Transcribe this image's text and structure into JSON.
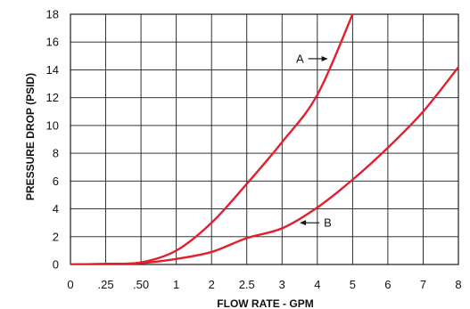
{
  "chart_data": {
    "type": "line",
    "title": "",
    "xlabel": "FLOW RATE - GPM",
    "ylabel": "PRESSURE DROP (PSID)",
    "x_ticks": [
      {
        "value": 0,
        "label": "0"
      },
      {
        "value": 0.25,
        "label": ".25"
      },
      {
        "value": 0.5,
        "label": ".50"
      },
      {
        "value": 1,
        "label": "1"
      },
      {
        "value": 2,
        "label": "2"
      },
      {
        "value": 2.5,
        "label": "2.5"
      },
      {
        "value": 3,
        "label": "3"
      },
      {
        "value": 4,
        "label": "4"
      },
      {
        "value": 5,
        "label": "5"
      },
      {
        "value": 6,
        "label": "6"
      },
      {
        "value": 7,
        "label": "7"
      },
      {
        "value": 8,
        "label": "8"
      }
    ],
    "y_ticks": [
      {
        "value": 0,
        "label": "0"
      },
      {
        "value": 2,
        "label": "2"
      },
      {
        "value": 4,
        "label": "4"
      },
      {
        "value": 6,
        "label": "6"
      },
      {
        "value": 8,
        "label": "8"
      },
      {
        "value": 10,
        "label": "10"
      },
      {
        "value": 12,
        "label": "12"
      },
      {
        "value": 14,
        "label": "14"
      },
      {
        "value": 16,
        "label": "16"
      },
      {
        "value": 18,
        "label": "18"
      }
    ],
    "ylim": [
      0,
      18
    ],
    "grid": true,
    "line_color": "#e0202c",
    "series": [
      {
        "name": "A",
        "points": [
          [
            0,
            0
          ],
          [
            0.25,
            0.05
          ],
          [
            0.5,
            0.15
          ],
          [
            1,
            1.0
          ],
          [
            2,
            3.0
          ],
          [
            2.5,
            5.8
          ],
          [
            3,
            8.8
          ],
          [
            4,
            12.2
          ],
          [
            5,
            18.0
          ]
        ]
      },
      {
        "name": "B",
        "points": [
          [
            0,
            0
          ],
          [
            0.25,
            0.03
          ],
          [
            0.5,
            0.1
          ],
          [
            1,
            0.4
          ],
          [
            2,
            0.9
          ],
          [
            2.5,
            1.9
          ],
          [
            3,
            2.6
          ],
          [
            4,
            4.1
          ],
          [
            5,
            6.1
          ],
          [
            6,
            8.4
          ],
          [
            7,
            11.0
          ],
          [
            8,
            14.2
          ]
        ]
      }
    ],
    "annotations": [
      {
        "label": "A",
        "series": "A",
        "at": [
          4.4,
          14.8
        ]
      },
      {
        "label": "B",
        "series": "B",
        "at": [
          3.4,
          3.0
        ]
      }
    ]
  }
}
